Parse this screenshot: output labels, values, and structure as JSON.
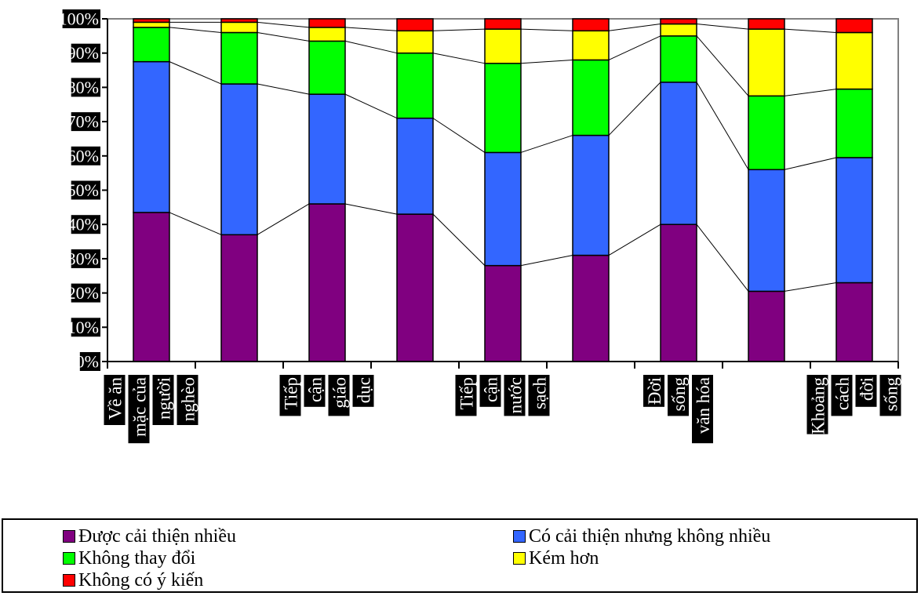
{
  "chart_data": {
    "type": "bar",
    "stacked": true,
    "percent_stacked": true,
    "categories": [
      [
        "Về ăn",
        "mặc của",
        "người",
        "nghèo"
      ],
      [],
      [
        "Tiếp",
        "cận",
        "giáo",
        "dục"
      ],
      [],
      [
        "Tiếp",
        "cận",
        "nước",
        "sạch"
      ],
      [],
      [
        "Đời",
        "sống",
        "văn hóa"
      ],
      [],
      [
        "Khoảng",
        "cách",
        "đời",
        "sống"
      ]
    ],
    "series": [
      {
        "name": "Được cải thiện nhiều",
        "color": "#800080",
        "values": [
          43.5,
          37,
          46,
          43,
          28,
          31,
          40,
          20.5,
          23
        ]
      },
      {
        "name": "Có cải thiện nhưng không nhiều",
        "color": "#3366ff",
        "values": [
          44,
          44,
          32,
          28,
          33,
          35,
          41.5,
          35.5,
          36.5
        ]
      },
      {
        "name": "Không thay đổi",
        "color": "#00ff00",
        "values": [
          10,
          15,
          15.5,
          19,
          26,
          22,
          13.5,
          21.5,
          20
        ]
      },
      {
        "name": "Kém hơn",
        "color": "#ffff00",
        "values": [
          1.5,
          3,
          4,
          6.5,
          10,
          8.5,
          3.5,
          19.5,
          16.5
        ]
      },
      {
        "name": "Không có ý kiến",
        "color": "#ff0000",
        "values": [
          1,
          1,
          2.5,
          3.5,
          3,
          3.5,
          1.5,
          3,
          4
        ]
      }
    ],
    "y_ticks": [
      "0%",
      "10%",
      "20%",
      "30%",
      "40%",
      "50%",
      "60%",
      "70%",
      "80%",
      "90%",
      "100%"
    ],
    "ylim": [
      0,
      100
    ],
    "title": "",
    "xlabel": "",
    "ylabel": "",
    "legend_position": "bottom",
    "grid": false,
    "series_lines": true
  }
}
